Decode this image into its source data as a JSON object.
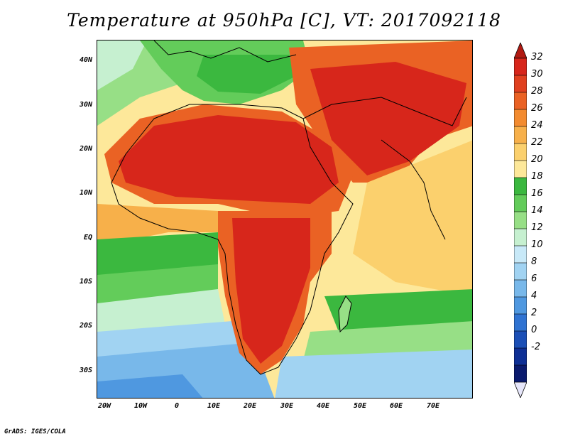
{
  "title": "Temperature at 950hPa [C], VT: 2017092118",
  "footer": "GrADS: IGES/COLA",
  "map": {
    "variable": "Temperature",
    "level": "950hPa",
    "units": "C",
    "valid_time": "2017092118",
    "lon_range": [
      "22W",
      "80E"
    ],
    "lat_range": [
      "37S",
      "45N"
    ],
    "y_ticks": [
      "40N",
      "30N",
      "20N",
      "10N",
      "EQ",
      "10S",
      "20S",
      "30S"
    ],
    "x_ticks": [
      "20W",
      "10W",
      "0",
      "10E",
      "20E",
      "30E",
      "40E",
      "50E",
      "60E",
      "70E"
    ]
  },
  "colorbar": {
    "labels": [
      "32",
      "30",
      "28",
      "26",
      "24",
      "22",
      "20",
      "18",
      "16",
      "14",
      "12",
      "10",
      "8",
      "6",
      "4",
      "2",
      "0",
      "-2"
    ],
    "colors": [
      "#d7261b",
      "#e0401f",
      "#ea6224",
      "#f38b2f",
      "#f7b04a",
      "#fbd06d",
      "#fde89a",
      "#3bb83f",
      "#63cc5a",
      "#97df86",
      "#c6f0d0",
      "#c8e9f8",
      "#a1d3f2",
      "#78b8ea",
      "#4f98e0",
      "#2f73d2",
      "#1b4fb6",
      "#0e2f95",
      "#0a1a6e"
    ],
    "top_arrow_color": "#b01a12",
    "bottom_arrow_color": "#e6e6fa"
  }
}
